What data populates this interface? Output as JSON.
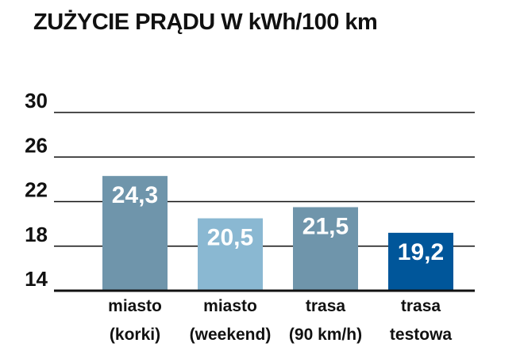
{
  "chart_data": {
    "type": "bar",
    "title": "ZUŻYCIE PRĄDU W kWh/100 km",
    "categories": [
      [
        "miasto",
        "(korki)"
      ],
      [
        "miasto",
        "(weekend)"
      ],
      [
        "trasa",
        "(90 km/h)"
      ],
      [
        "trasa",
        "testowa"
      ]
    ],
    "values": [
      24.3,
      20.5,
      21.5,
      19.2
    ],
    "value_labels": [
      "24,3",
      "20,5",
      "21,5",
      "19,2"
    ],
    "bar_colors": [
      "#6f95ab",
      "#8ab8d2",
      "#6f95ab",
      "#00569a"
    ],
    "ylim": [
      14,
      30
    ],
    "yticks": [
      30,
      26,
      22,
      18,
      14
    ],
    "grid": true,
    "xlabel": "",
    "ylabel": ""
  }
}
